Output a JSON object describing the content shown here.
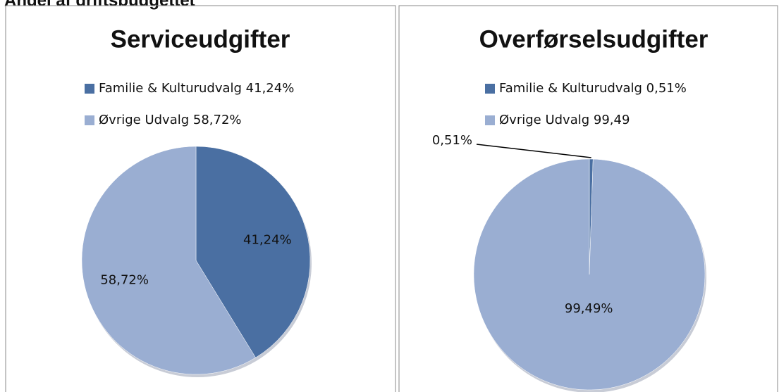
{
  "heading": "Andel af driftsbudgettet",
  "chart_data": [
    {
      "type": "pie",
      "title": "Serviceudgifter",
      "categories": [
        "Familie & Kulturudvalg  41,24%",
        "Øvrige Udvalg 58,72%"
      ],
      "values": [
        41.24,
        58.72
      ],
      "value_labels": [
        "41,24%",
        "58,72%"
      ],
      "colors": [
        "#4a6fa2",
        "#9aaed2"
      ]
    },
    {
      "type": "pie",
      "title": "Overførselsudgifter",
      "categories": [
        "Familie & Kulturudvalg 0,51%",
        "Øvrige Udvalg 99,49"
      ],
      "values": [
        0.51,
        99.49
      ],
      "value_labels": [
        "0,51%",
        "99,49%"
      ],
      "colors": [
        "#4a6fa2",
        "#9aaed2"
      ]
    }
  ]
}
